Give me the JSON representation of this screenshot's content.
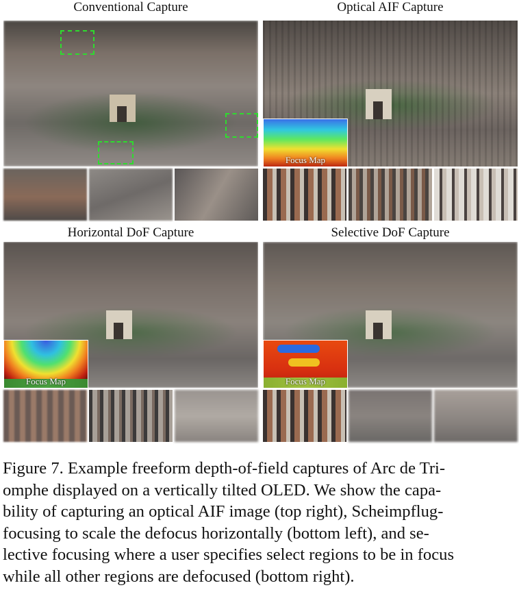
{
  "panels": {
    "conventional": {
      "title": "Conventional Capture"
    },
    "optical_aif": {
      "title": "Optical AIF Capture",
      "inset_label": "Focus Map"
    },
    "horizontal_dof": {
      "title": "Horizontal DoF Capture",
      "inset_label": "Focus Map"
    },
    "selective_dof": {
      "title": "Selective DoF Capture",
      "inset_label": "Focus Map"
    }
  },
  "caption": {
    "lines": [
      "Figure 7. Example freeform depth-of-field captures of Arc de Tri-",
      "omphe displayed on a vertically tilted OLED.  We show the capa-",
      "bility of capturing an optical AIF image (top right), Scheimpflug-",
      "focusing to scale the defocus horizontally (bottom left), and  se-",
      "lective focusing where a user specifies select regions to be in focus",
      "while all other regions are defocused (bottom right)."
    ]
  },
  "colors": {
    "roi_box": "#2edc2e",
    "sharp_city": "#6a6560",
    "blurred_city": "#8a8680"
  }
}
